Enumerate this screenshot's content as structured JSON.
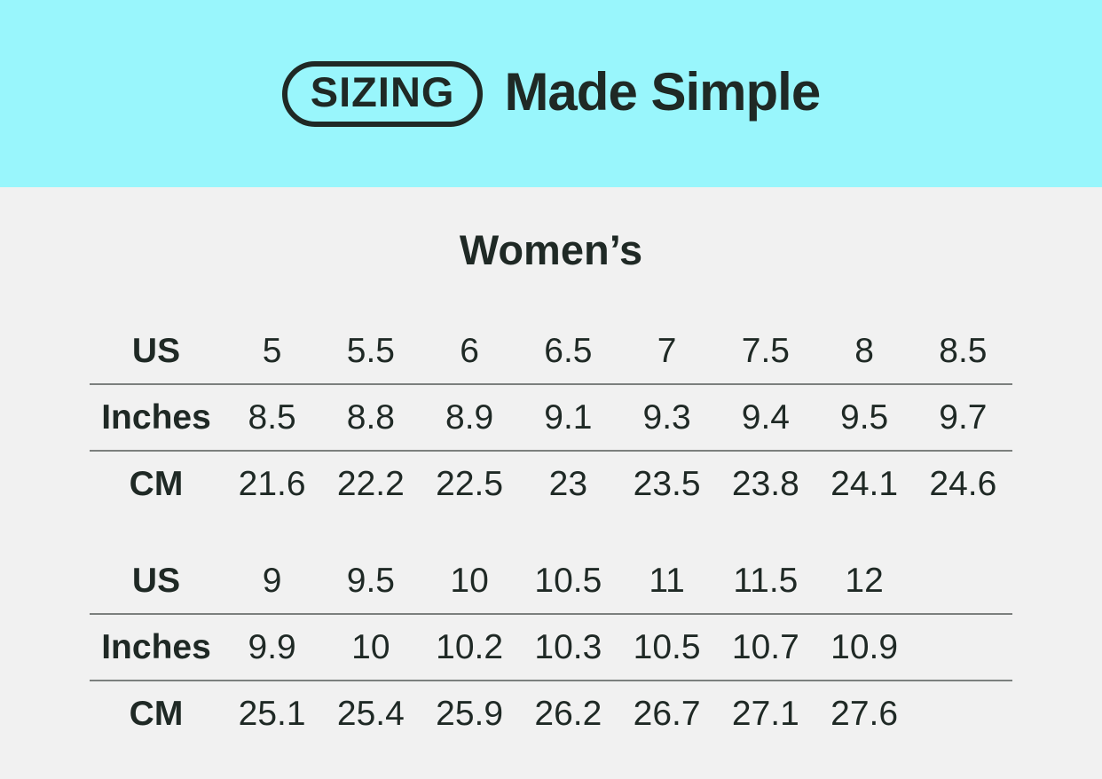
{
  "header": {
    "badge_label": "SIZING",
    "title": "Made Simple"
  },
  "main": {
    "section_title": "Women’s"
  },
  "colors": {
    "header_bg": "#99f6fc",
    "body_bg": "#f1f1f1",
    "text": "#1f2925",
    "divider": "#7c807e"
  },
  "chart_data": {
    "type": "table",
    "title": "SIZING Made Simple — Women’s shoe size conversion",
    "row_headers": [
      "US",
      "Inches",
      "CM"
    ],
    "sections": [
      {
        "rows": [
          {
            "label": "US",
            "values": [
              "5",
              "5.5",
              "6",
              "6.5",
              "7",
              "7.5",
              "8",
              "8.5"
            ]
          },
          {
            "label": "Inches",
            "values": [
              "8.5",
              "8.8",
              "8.9",
              "9.1",
              "9.3",
              "9.4",
              "9.5",
              "9.7"
            ]
          },
          {
            "label": "CM",
            "values": [
              "21.6",
              "22.2",
              "22.5",
              "23",
              "23.5",
              "23.8",
              "24.1",
              "24.6"
            ]
          }
        ]
      },
      {
        "rows": [
          {
            "label": "US",
            "values": [
              "9",
              "9.5",
              "10",
              "10.5",
              "11",
              "11.5",
              "12",
              ""
            ]
          },
          {
            "label": "Inches",
            "values": [
              "9.9",
              "10",
              "10.2",
              "10.3",
              "10.5",
              "10.7",
              "10.9",
              ""
            ]
          },
          {
            "label": "CM",
            "values": [
              "25.1",
              "25.4",
              "25.9",
              "26.2",
              "26.7",
              "27.1",
              "27.6",
              ""
            ]
          }
        ]
      }
    ]
  }
}
